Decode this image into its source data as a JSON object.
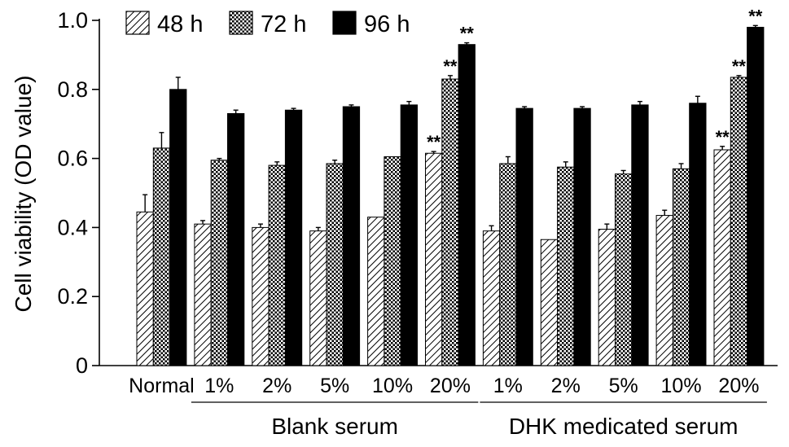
{
  "chart_data": {
    "type": "bar",
    "ylabel": "Cell viability (OD value)",
    "ylim": [
      0,
      1.0
    ],
    "yticks": [
      0,
      0.2,
      0.4,
      0.6,
      0.8,
      1.0
    ],
    "ytick_labels": [
      "0",
      "0.2",
      "0.4",
      "0.6",
      "0.8",
      "1.0"
    ],
    "categories": [
      "Normal",
      "1%",
      "2%",
      "5%",
      "10%",
      "20%",
      "1%",
      "2%",
      "5%",
      "10%",
      "20%"
    ],
    "groups": [
      {
        "label": "Blank serum",
        "from": 1,
        "to": 5
      },
      {
        "label": "DHK medicated serum",
        "from": 6,
        "to": 10
      }
    ],
    "legend_position": "top-left",
    "grid": false,
    "series": [
      {
        "name": "48 h",
        "pattern": "diagonal-hatch",
        "values": [
          0.445,
          0.41,
          0.4,
          0.39,
          0.43,
          0.615,
          0.39,
          0.365,
          0.395,
          0.435,
          0.625
        ],
        "errors": [
          0.05,
          0.01,
          0.01,
          0.01,
          0.0,
          0.005,
          0.015,
          0.0,
          0.015,
          0.015,
          0.01
        ],
        "significance": [
          "",
          "",
          "",
          "",
          "",
          "**",
          "",
          "",
          "",
          "",
          "**"
        ]
      },
      {
        "name": "72 h",
        "pattern": "crosshatch",
        "values": [
          0.63,
          0.595,
          0.58,
          0.585,
          0.605,
          0.83,
          0.585,
          0.575,
          0.555,
          0.57,
          0.835
        ],
        "errors": [
          0.045,
          0.005,
          0.01,
          0.01,
          0.0,
          0.01,
          0.02,
          0.015,
          0.01,
          0.015,
          0.005
        ],
        "significance": [
          "",
          "",
          "",
          "",
          "",
          "**",
          "",
          "",
          "",
          "",
          "**"
        ]
      },
      {
        "name": "96 h",
        "pattern": "solid",
        "values": [
          0.8,
          0.73,
          0.74,
          0.75,
          0.755,
          0.93,
          0.745,
          0.745,
          0.755,
          0.76,
          0.98
        ],
        "errors": [
          0.035,
          0.01,
          0.005,
          0.005,
          0.01,
          0.005,
          0.005,
          0.005,
          0.01,
          0.02,
          0.005
        ],
        "significance": [
          "",
          "",
          "",
          "",
          "",
          "**",
          "",
          "",
          "",
          "",
          "**"
        ]
      }
    ]
  }
}
